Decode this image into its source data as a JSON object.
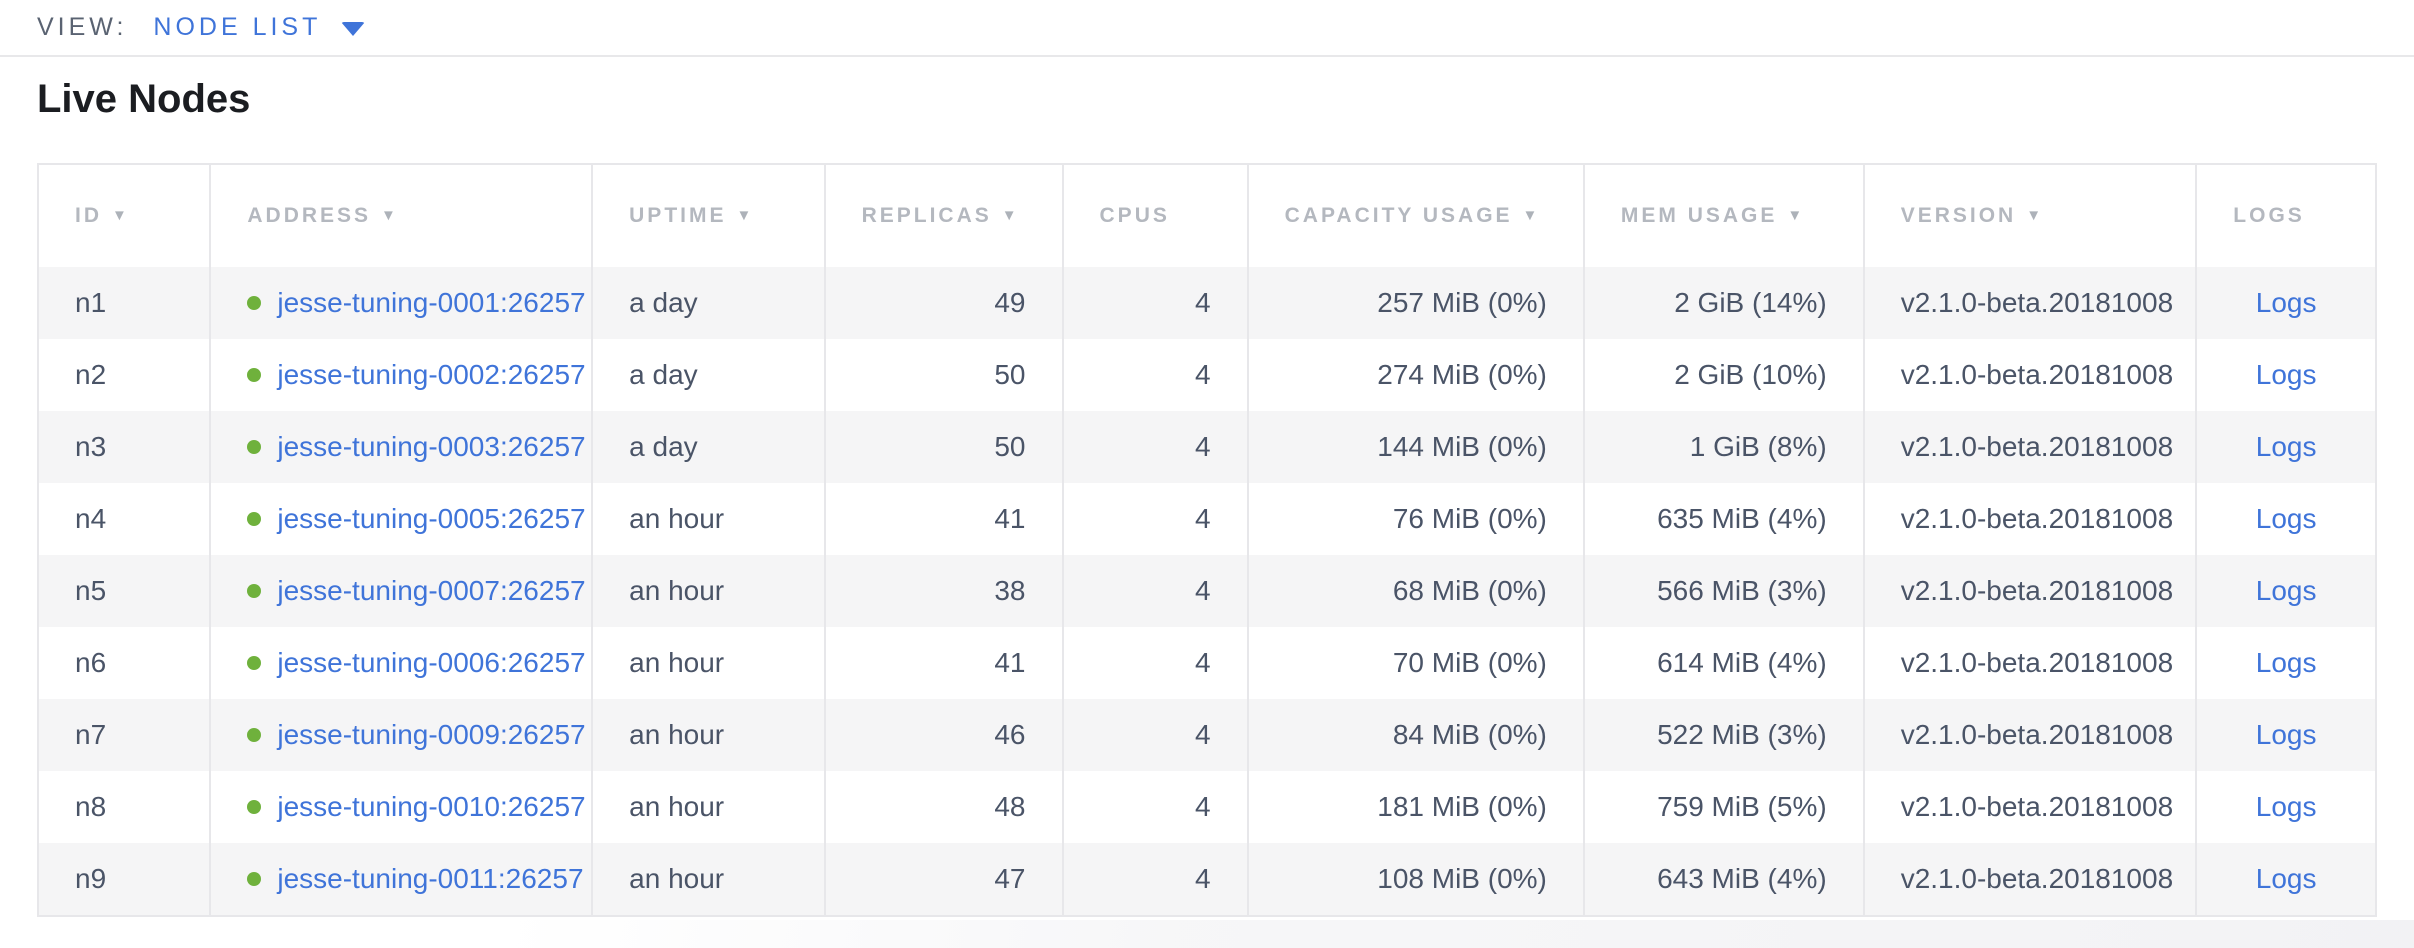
{
  "view_bar": {
    "label": "VIEW:",
    "selected": "NODE LIST"
  },
  "page": {
    "title": "Live Nodes"
  },
  "icons": {
    "sort_arrow_glyph": "▼",
    "dropdown_caret": "caret-down",
    "node_status": "live-green-dot"
  },
  "colors": {
    "accent_blue": "#3f74d9",
    "live_green": "#6fb13c",
    "header_gray": "#b4b8bf",
    "data_slate": "#4a5467",
    "row_stripe": "#f5f5f6",
    "border": "#e7e7ea"
  },
  "table": {
    "columns": [
      {
        "key": "id",
        "label": "ID",
        "sorted": true,
        "align": "left"
      },
      {
        "key": "address",
        "label": "ADDRESS",
        "sorted": true,
        "align": "left"
      },
      {
        "key": "uptime",
        "label": "UPTIME",
        "sorted": true,
        "align": "left"
      },
      {
        "key": "replicas",
        "label": "REPLICAS",
        "sorted": true,
        "align": "right"
      },
      {
        "key": "cpus",
        "label": "CPUS",
        "sorted": false,
        "align": "right"
      },
      {
        "key": "capacity",
        "label": "CAPACITY USAGE",
        "sorted": true,
        "align": "right"
      },
      {
        "key": "mem",
        "label": "MEM USAGE",
        "sorted": true,
        "align": "right"
      },
      {
        "key": "version",
        "label": "VERSION",
        "sorted": true,
        "align": "left"
      },
      {
        "key": "logs",
        "label": "LOGS",
        "sorted": false,
        "align": "center"
      }
    ],
    "rows": [
      {
        "id": "n1",
        "address": "jesse-tuning-0001:26257",
        "uptime": "a day",
        "replicas": "49",
        "cpus": "4",
        "capacity": "257 MiB (0%)",
        "mem": "2 GiB (14%)",
        "version": "v2.1.0-beta.20181008",
        "logs": "Logs",
        "status": "live"
      },
      {
        "id": "n2",
        "address": "jesse-tuning-0002:26257",
        "uptime": "a day",
        "replicas": "50",
        "cpus": "4",
        "capacity": "274 MiB (0%)",
        "mem": "2 GiB (10%)",
        "version": "v2.1.0-beta.20181008",
        "logs": "Logs",
        "status": "live"
      },
      {
        "id": "n3",
        "address": "jesse-tuning-0003:26257",
        "uptime": "a day",
        "replicas": "50",
        "cpus": "4",
        "capacity": "144 MiB (0%)",
        "mem": "1 GiB (8%)",
        "version": "v2.1.0-beta.20181008",
        "logs": "Logs",
        "status": "live"
      },
      {
        "id": "n4",
        "address": "jesse-tuning-0005:26257",
        "uptime": "an hour",
        "replicas": "41",
        "cpus": "4",
        "capacity": "76 MiB (0%)",
        "mem": "635 MiB (4%)",
        "version": "v2.1.0-beta.20181008",
        "logs": "Logs",
        "status": "live"
      },
      {
        "id": "n5",
        "address": "jesse-tuning-0007:26257",
        "uptime": "an hour",
        "replicas": "38",
        "cpus": "4",
        "capacity": "68 MiB (0%)",
        "mem": "566 MiB (3%)",
        "version": "v2.1.0-beta.20181008",
        "logs": "Logs",
        "status": "live"
      },
      {
        "id": "n6",
        "address": "jesse-tuning-0006:26257",
        "uptime": "an hour",
        "replicas": "41",
        "cpus": "4",
        "capacity": "70 MiB (0%)",
        "mem": "614 MiB (4%)",
        "version": "v2.1.0-beta.20181008",
        "logs": "Logs",
        "status": "live"
      },
      {
        "id": "n7",
        "address": "jesse-tuning-0009:26257",
        "uptime": "an hour",
        "replicas": "46",
        "cpus": "4",
        "capacity": "84 MiB (0%)",
        "mem": "522 MiB (3%)",
        "version": "v2.1.0-beta.20181008",
        "logs": "Logs",
        "status": "live"
      },
      {
        "id": "n8",
        "address": "jesse-tuning-0010:26257",
        "uptime": "an hour",
        "replicas": "48",
        "cpus": "4",
        "capacity": "181 MiB (0%)",
        "mem": "759 MiB (5%)",
        "version": "v2.1.0-beta.20181008",
        "logs": "Logs",
        "status": "live"
      },
      {
        "id": "n9",
        "address": "jesse-tuning-0011:26257",
        "uptime": "an hour",
        "replicas": "47",
        "cpus": "4",
        "capacity": "108 MiB (0%)",
        "mem": "643 MiB (4%)",
        "version": "v2.1.0-beta.20181008",
        "logs": "Logs",
        "status": "live"
      }
    ]
  }
}
